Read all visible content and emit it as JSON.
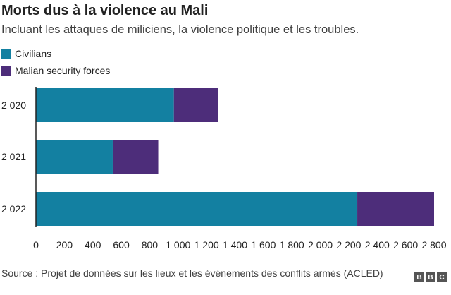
{
  "chart_data": {
    "type": "bar",
    "orientation": "horizontal",
    "stacked": true,
    "title": "Morts dus à la violence au Mali",
    "subtitle": "Incluant les attaques de miliciens, la violence politique et les troubles.",
    "categories": [
      "2 020",
      "2 021",
      "2 022"
    ],
    "series": [
      {
        "name": "Civilians",
        "color": "#1380a1",
        "values": [
          970,
          540,
          2260
        ]
      },
      {
        "name": "Malian security forces",
        "color": "#4d2d7a",
        "values": [
          310,
          320,
          540
        ]
      }
    ],
    "xlim": [
      0,
      2800
    ],
    "xticks": [
      "0",
      "200",
      "400",
      "600",
      "800",
      "1 000",
      "1 200",
      "1 400",
      "1 600",
      "1 800",
      "2 000",
      "2 200",
      "2 400",
      "2 600",
      "2 800"
    ],
    "grid": false,
    "legend": "top-left"
  },
  "source": "Source : Projet de données sur les lieux et les événements des conflits armés (ACLED)",
  "logo": "BBC"
}
